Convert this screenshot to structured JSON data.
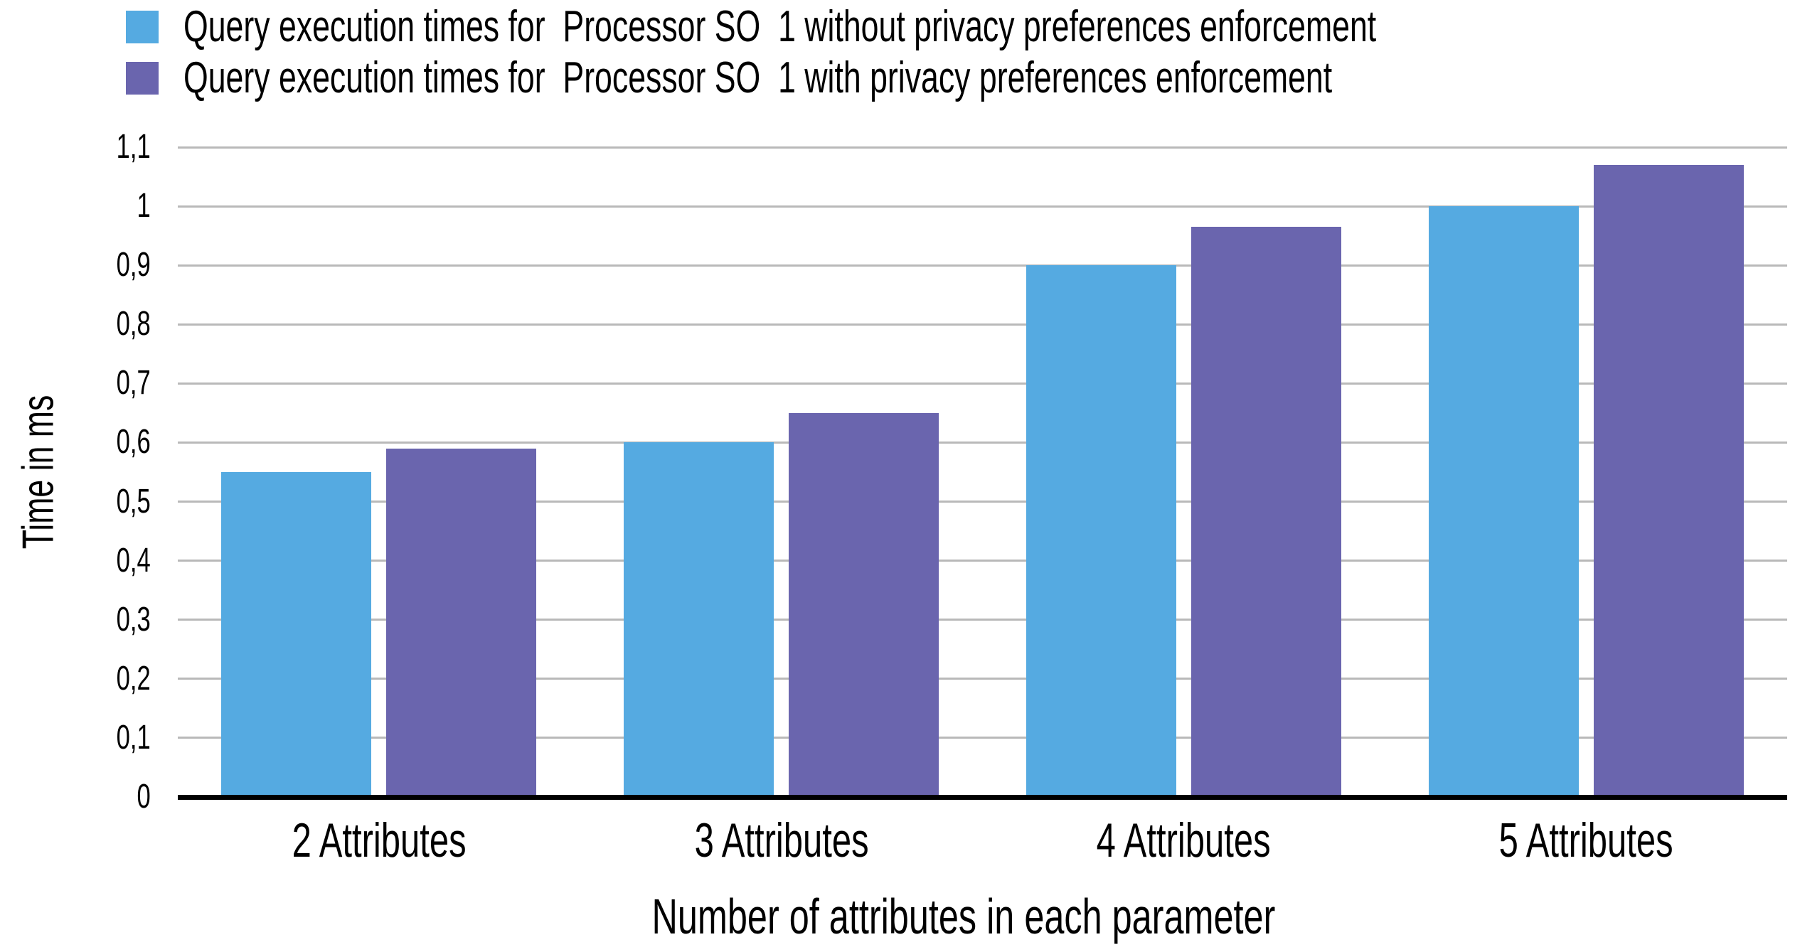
{
  "chart_data": {
    "type": "bar",
    "title": "",
    "categories": [
      "2 Attributes",
      "3 Attributes",
      "4 Attributes",
      "5 Attributes"
    ],
    "series": [
      {
        "name": "Query execution times for  Processor SO  1 without privacy preferences enforcement",
        "color": "#55AAE1",
        "values": [
          0.55,
          0.6,
          0.9,
          1.0
        ]
      },
      {
        "name": "Query execution times for  Processor SO  1 with privacy preferences enforcement",
        "color": "#6A65AE",
        "values": [
          0.59,
          0.65,
          0.965,
          1.07
        ]
      }
    ],
    "xlabel": "Number of attributes in each parameter",
    "ylabel": "Time in ms",
    "ylim": [
      0,
      1.1
    ],
    "ytick_step": 0.1,
    "ytick_labels": [
      "0",
      "0,1",
      "0,2",
      "0,3",
      "0,4",
      "0,5",
      "0,6",
      "0,7",
      "0,8",
      "0,9",
      "1",
      "1,1"
    ],
    "decimal_separator": ",",
    "grid": true,
    "legend_position": "top-left",
    "colors": {
      "grid": "#B9B9B9",
      "axis": "#000000",
      "text": "#000000",
      "background": "#FFFFFF"
    }
  }
}
